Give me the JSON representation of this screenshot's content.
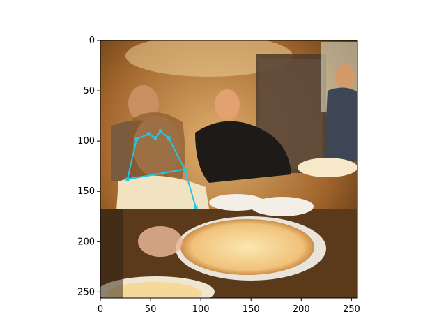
{
  "figure": {
    "x_ticks": [
      "0",
      "50",
      "100",
      "150",
      "200",
      "250"
    ],
    "y_ticks": [
      "0",
      "50",
      "100",
      "150",
      "200",
      "250"
    ]
  },
  "chart_data": {
    "type": "scatter",
    "title": "",
    "xlabel": "",
    "ylabel": "",
    "xlim": [
      0,
      256
    ],
    "ylim": [
      256,
      0
    ],
    "grid": false,
    "overlay_color": "#22c6e6",
    "keypoints": [
      {
        "x": 36,
        "y": 98
      },
      {
        "x": 48,
        "y": 93
      },
      {
        "x": 55,
        "y": 97
      },
      {
        "x": 60,
        "y": 90
      },
      {
        "x": 68,
        "y": 97
      },
      {
        "x": 84,
        "y": 128
      },
      {
        "x": 27,
        "y": 138
      },
      {
        "x": 95,
        "y": 166
      }
    ],
    "skeleton": [
      [
        0,
        1
      ],
      [
        1,
        2
      ],
      [
        2,
        3
      ],
      [
        3,
        4
      ],
      [
        4,
        5
      ],
      [
        5,
        6
      ],
      [
        6,
        0
      ],
      [
        5,
        7
      ]
    ]
  }
}
